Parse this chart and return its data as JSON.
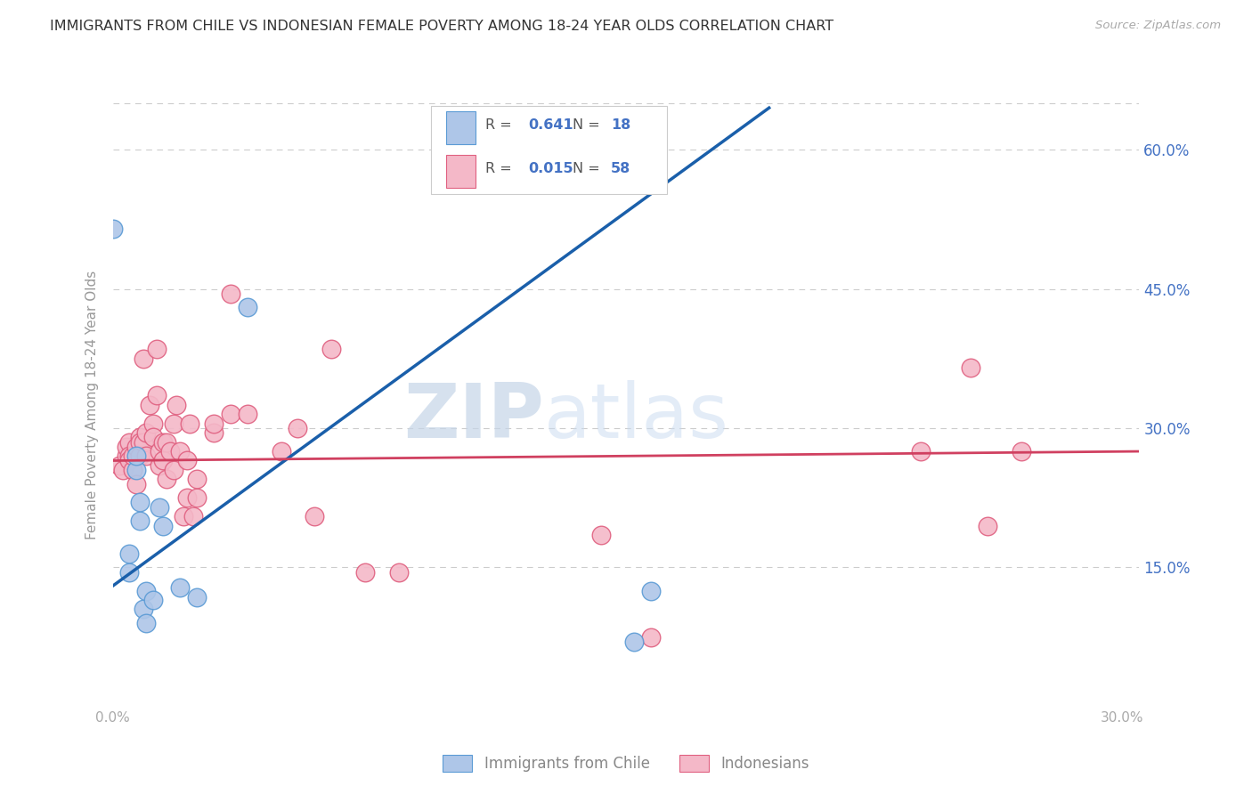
{
  "title": "IMMIGRANTS FROM CHILE VS INDONESIAN FEMALE POVERTY AMONG 18-24 YEAR OLDS CORRELATION CHART",
  "source": "Source: ZipAtlas.com",
  "ylabel": "Female Poverty Among 18-24 Year Olds",
  "xlim": [
    0.0,
    0.305
  ],
  "ylim": [
    0.0,
    0.65
  ],
  "yticks": [
    0.15,
    0.3,
    0.45,
    0.6
  ],
  "ytick_labels": [
    "15.0%",
    "30.0%",
    "45.0%",
    "60.0%"
  ],
  "xticks": [
    0.0,
    0.05,
    0.1,
    0.15,
    0.2,
    0.25,
    0.3
  ],
  "xtick_labels": [
    "0.0%",
    "",
    "",
    "",
    "",
    "",
    "30.0%"
  ],
  "chile_fill": "#aec6e8",
  "chile_edge": "#5b9bd5",
  "indo_fill": "#f4b8c8",
  "indo_edge": "#e06080",
  "trendline_chile": "#1a5faa",
  "trendline_indo": "#d04060",
  "R_chile": "0.641",
  "N_chile": "18",
  "R_indo": "0.015",
  "N_indo": "58",
  "watermark_zip": "ZIP",
  "watermark_atlas": "atlas",
  "legend1_label": "Immigrants from Chile",
  "legend2_label": "Indonesians",
  "trendline_chile_x0": 0.0,
  "trendline_chile_y0": 0.13,
  "trendline_chile_x1": 0.195,
  "trendline_chile_y1": 0.645,
  "trendline_indo_x0": 0.0,
  "trendline_indo_y0": 0.265,
  "trendline_indo_x1": 0.305,
  "trendline_indo_y1": 0.275,
  "chile_x": [
    0.0,
    0.005,
    0.005,
    0.007,
    0.007,
    0.008,
    0.008,
    0.009,
    0.01,
    0.01,
    0.012,
    0.014,
    0.015,
    0.02,
    0.025,
    0.04,
    0.155,
    0.16
  ],
  "chile_y": [
    0.515,
    0.145,
    0.165,
    0.255,
    0.27,
    0.2,
    0.22,
    0.105,
    0.125,
    0.09,
    0.115,
    0.215,
    0.195,
    0.128,
    0.118,
    0.43,
    0.07,
    0.125
  ],
  "indo_x": [
    0.002,
    0.003,
    0.004,
    0.004,
    0.005,
    0.005,
    0.005,
    0.006,
    0.006,
    0.007,
    0.007,
    0.008,
    0.008,
    0.008,
    0.009,
    0.009,
    0.01,
    0.01,
    0.011,
    0.012,
    0.012,
    0.013,
    0.013,
    0.014,
    0.014,
    0.015,
    0.015,
    0.016,
    0.016,
    0.017,
    0.018,
    0.018,
    0.019,
    0.02,
    0.021,
    0.022,
    0.022,
    0.023,
    0.024,
    0.025,
    0.025,
    0.03,
    0.03,
    0.035,
    0.035,
    0.04,
    0.05,
    0.055,
    0.06,
    0.065,
    0.075,
    0.085,
    0.145,
    0.16,
    0.24,
    0.255,
    0.26,
    0.27
  ],
  "indo_y": [
    0.26,
    0.255,
    0.27,
    0.28,
    0.285,
    0.27,
    0.265,
    0.255,
    0.27,
    0.28,
    0.24,
    0.29,
    0.285,
    0.27,
    0.375,
    0.285,
    0.295,
    0.27,
    0.325,
    0.305,
    0.29,
    0.335,
    0.385,
    0.275,
    0.26,
    0.265,
    0.285,
    0.245,
    0.285,
    0.275,
    0.255,
    0.305,
    0.325,
    0.275,
    0.205,
    0.225,
    0.265,
    0.305,
    0.205,
    0.225,
    0.245,
    0.295,
    0.305,
    0.315,
    0.445,
    0.315,
    0.275,
    0.3,
    0.205,
    0.385,
    0.145,
    0.145,
    0.185,
    0.075,
    0.275,
    0.365,
    0.195,
    0.275
  ]
}
